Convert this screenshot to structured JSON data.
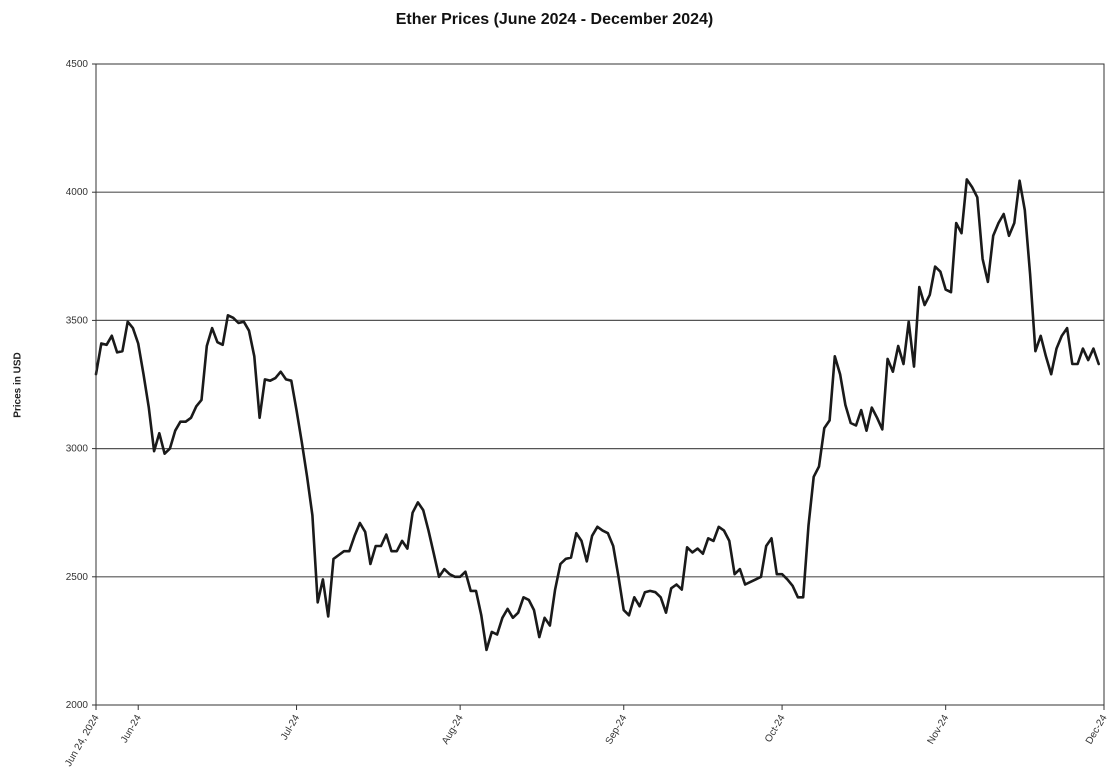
{
  "chart_data": {
    "type": "line",
    "title": "Ether Prices (June 2024 - December 2024)",
    "xlabel": "",
    "ylabel": "Prices in USD",
    "ylim": [
      2000,
      4500
    ],
    "yticks": [
      "2000",
      "2500",
      "3000",
      "3500",
      "4000",
      "4500"
    ],
    "grid": "horizontal",
    "line_color": "#1a1a1a",
    "xlim": [
      "2024-05-24",
      "2024-12-01"
    ],
    "xticks": [
      {
        "date": "2024-05-24",
        "label": "Jun 24, 2024"
      },
      {
        "date": "2024-06-01",
        "label": "Jun-24"
      },
      {
        "date": "2024-07-01",
        "label": "Jul-24"
      },
      {
        "date": "2024-08-01",
        "label": "Aug-24"
      },
      {
        "date": "2024-09-01",
        "label": "Sep-24"
      },
      {
        "date": "2024-10-01",
        "label": "Oct-24"
      },
      {
        "date": "2024-11-01",
        "label": "Nov-24"
      },
      {
        "date": "2024-12-01",
        "label": "Dec-24"
      }
    ],
    "series": [
      {
        "points": [
          [
            "2024-05-24",
            3290
          ],
          [
            "2024-05-25",
            3410
          ],
          [
            "2024-05-26",
            3405
          ],
          [
            "2024-05-27",
            3440
          ],
          [
            "2024-05-28",
            3375
          ],
          [
            "2024-05-29",
            3380
          ],
          [
            "2024-05-30",
            3495
          ],
          [
            "2024-05-31",
            3470
          ],
          [
            "2024-06-01",
            3410
          ],
          [
            "2024-06-02",
            3290
          ],
          [
            "2024-06-03",
            3160
          ],
          [
            "2024-06-04",
            2990
          ],
          [
            "2024-06-05",
            3060
          ],
          [
            "2024-06-06",
            2980
          ],
          [
            "2024-06-07",
            3000
          ],
          [
            "2024-06-08",
            3070
          ],
          [
            "2024-06-09",
            3105
          ],
          [
            "2024-06-10",
            3105
          ],
          [
            "2024-06-11",
            3120
          ],
          [
            "2024-06-12",
            3165
          ],
          [
            "2024-06-13",
            3190
          ],
          [
            "2024-06-14",
            3400
          ],
          [
            "2024-06-15",
            3470
          ],
          [
            "2024-06-16",
            3415
          ],
          [
            "2024-06-17",
            3405
          ],
          [
            "2024-06-18",
            3520
          ],
          [
            "2024-06-19",
            3510
          ],
          [
            "2024-06-20",
            3490
          ],
          [
            "2024-06-21",
            3495
          ],
          [
            "2024-06-22",
            3460
          ],
          [
            "2024-06-23",
            3360
          ],
          [
            "2024-06-24",
            3120
          ],
          [
            "2024-06-25",
            3270
          ],
          [
            "2024-06-26",
            3265
          ],
          [
            "2024-06-27",
            3275
          ],
          [
            "2024-06-28",
            3300
          ],
          [
            "2024-06-29",
            3270
          ],
          [
            "2024-06-30",
            3265
          ],
          [
            "2024-07-01",
            3150
          ],
          [
            "2024-07-02",
            3025
          ],
          [
            "2024-07-03",
            2890
          ],
          [
            "2024-07-04",
            2740
          ],
          [
            "2024-07-05",
            2400
          ],
          [
            "2024-07-06",
            2490
          ],
          [
            "2024-07-07",
            2345
          ],
          [
            "2024-07-08",
            2570
          ],
          [
            "2024-07-09",
            2585
          ],
          [
            "2024-07-10",
            2600
          ],
          [
            "2024-07-11",
            2600
          ],
          [
            "2024-07-12",
            2660
          ],
          [
            "2024-07-13",
            2710
          ],
          [
            "2024-07-14",
            2675
          ],
          [
            "2024-07-15",
            2550
          ],
          [
            "2024-07-16",
            2620
          ],
          [
            "2024-07-17",
            2620
          ],
          [
            "2024-07-18",
            2665
          ],
          [
            "2024-07-19",
            2600
          ],
          [
            "2024-07-20",
            2600
          ],
          [
            "2024-07-21",
            2640
          ],
          [
            "2024-07-22",
            2610
          ],
          [
            "2024-07-23",
            2750
          ],
          [
            "2024-07-24",
            2790
          ],
          [
            "2024-07-25",
            2760
          ],
          [
            "2024-07-26",
            2680
          ],
          [
            "2024-07-27",
            2590
          ],
          [
            "2024-07-28",
            2500
          ],
          [
            "2024-07-29",
            2530
          ],
          [
            "2024-07-30",
            2510
          ],
          [
            "2024-07-31",
            2500
          ],
          [
            "2024-08-01",
            2500
          ],
          [
            "2024-08-02",
            2520
          ],
          [
            "2024-08-03",
            2445
          ],
          [
            "2024-08-04",
            2445
          ],
          [
            "2024-08-05",
            2350
          ],
          [
            "2024-08-06",
            2215
          ],
          [
            "2024-08-07",
            2285
          ],
          [
            "2024-08-08",
            2275
          ],
          [
            "2024-08-09",
            2340
          ],
          [
            "2024-08-10",
            2375
          ],
          [
            "2024-08-11",
            2340
          ],
          [
            "2024-08-12",
            2360
          ],
          [
            "2024-08-13",
            2420
          ],
          [
            "2024-08-14",
            2410
          ],
          [
            "2024-08-15",
            2370
          ],
          [
            "2024-08-16",
            2265
          ],
          [
            "2024-08-17",
            2340
          ],
          [
            "2024-08-18",
            2310
          ],
          [
            "2024-08-19",
            2450
          ],
          [
            "2024-08-20",
            2550
          ],
          [
            "2024-08-21",
            2570
          ],
          [
            "2024-08-22",
            2575
          ],
          [
            "2024-08-23",
            2670
          ],
          [
            "2024-08-24",
            2640
          ],
          [
            "2024-08-25",
            2560
          ],
          [
            "2024-08-26",
            2660
          ],
          [
            "2024-08-27",
            2695
          ],
          [
            "2024-08-28",
            2680
          ],
          [
            "2024-08-29",
            2670
          ],
          [
            "2024-08-30",
            2620
          ],
          [
            "2024-08-31",
            2500
          ],
          [
            "2024-09-01",
            2370
          ],
          [
            "2024-09-02",
            2350
          ],
          [
            "2024-09-03",
            2420
          ],
          [
            "2024-09-04",
            2385
          ],
          [
            "2024-09-05",
            2440
          ],
          [
            "2024-09-06",
            2445
          ],
          [
            "2024-09-07",
            2440
          ],
          [
            "2024-09-08",
            2420
          ],
          [
            "2024-09-09",
            2360
          ],
          [
            "2024-09-10",
            2455
          ],
          [
            "2024-09-11",
            2470
          ],
          [
            "2024-09-12",
            2450
          ],
          [
            "2024-09-13",
            2615
          ],
          [
            "2024-09-14",
            2595
          ],
          [
            "2024-09-15",
            2610
          ],
          [
            "2024-09-16",
            2590
          ],
          [
            "2024-09-17",
            2650
          ],
          [
            "2024-09-18",
            2640
          ],
          [
            "2024-09-19",
            2695
          ],
          [
            "2024-09-20",
            2680
          ],
          [
            "2024-09-21",
            2640
          ],
          [
            "2024-09-22",
            2510
          ],
          [
            "2024-09-23",
            2530
          ],
          [
            "2024-09-24",
            2470
          ],
          [
            "2024-09-25",
            2480
          ],
          [
            "2024-09-26",
            2490
          ],
          [
            "2024-09-27",
            2500
          ],
          [
            "2024-09-28",
            2620
          ],
          [
            "2024-09-29",
            2650
          ],
          [
            "2024-09-30",
            2510
          ],
          [
            "2024-10-01",
            2510
          ],
          [
            "2024-10-02",
            2490
          ],
          [
            "2024-10-03",
            2465
          ],
          [
            "2024-10-04",
            2420
          ],
          [
            "2024-10-05",
            2420
          ],
          [
            "2024-10-06",
            2700
          ],
          [
            "2024-10-07",
            2890
          ],
          [
            "2024-10-08",
            2930
          ],
          [
            "2024-10-09",
            3080
          ],
          [
            "2024-10-10",
            3110
          ],
          [
            "2024-10-11",
            3360
          ],
          [
            "2024-10-12",
            3290
          ],
          [
            "2024-10-13",
            3170
          ],
          [
            "2024-10-14",
            3100
          ],
          [
            "2024-10-15",
            3090
          ],
          [
            "2024-10-16",
            3150
          ],
          [
            "2024-10-17",
            3070
          ],
          [
            "2024-10-18",
            3160
          ],
          [
            "2024-10-19",
            3120
          ],
          [
            "2024-10-20",
            3075
          ],
          [
            "2024-10-21",
            3350
          ],
          [
            "2024-10-22",
            3300
          ],
          [
            "2024-10-23",
            3400
          ],
          [
            "2024-10-24",
            3330
          ],
          [
            "2024-10-25",
            3495
          ],
          [
            "2024-10-26",
            3320
          ],
          [
            "2024-10-27",
            3630
          ],
          [
            "2024-10-28",
            3560
          ],
          [
            "2024-10-29",
            3600
          ],
          [
            "2024-10-30",
            3710
          ],
          [
            "2024-10-31",
            3690
          ],
          [
            "2024-11-01",
            3620
          ],
          [
            "2024-11-02",
            3610
          ],
          [
            "2024-11-03",
            3880
          ],
          [
            "2024-11-04",
            3840
          ],
          [
            "2024-11-05",
            4050
          ],
          [
            "2024-11-06",
            4020
          ],
          [
            "2024-11-07",
            3980
          ],
          [
            "2024-11-08",
            3740
          ],
          [
            "2024-11-09",
            3650
          ],
          [
            "2024-11-10",
            3830
          ],
          [
            "2024-11-11",
            3880
          ],
          [
            "2024-11-12",
            3915
          ],
          [
            "2024-11-13",
            3830
          ],
          [
            "2024-11-14",
            3880
          ],
          [
            "2024-11-15",
            4045
          ],
          [
            "2024-11-16",
            3930
          ],
          [
            "2024-11-17",
            3680
          ],
          [
            "2024-11-18",
            3380
          ],
          [
            "2024-11-19",
            3440
          ],
          [
            "2024-11-20",
            3360
          ],
          [
            "2024-11-21",
            3290
          ],
          [
            "2024-11-22",
            3390
          ],
          [
            "2024-11-23",
            3440
          ],
          [
            "2024-11-24",
            3470
          ],
          [
            "2024-11-25",
            3330
          ],
          [
            "2024-11-26",
            3330
          ],
          [
            "2024-11-27",
            3390
          ],
          [
            "2024-11-28",
            3345
          ],
          [
            "2024-11-29",
            3390
          ],
          [
            "2024-11-30",
            3330
          ]
        ]
      }
    ]
  }
}
